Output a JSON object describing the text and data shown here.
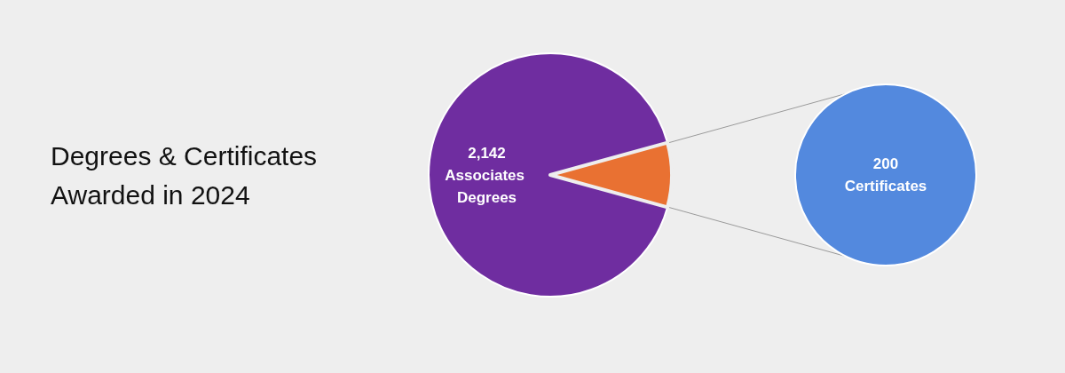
{
  "chart_data": [
    {
      "type": "pie",
      "title": "Degrees & Certificates Awarded in 2024",
      "categories": [
        "Associates Degrees",
        null
      ],
      "values": [
        2142,
        200
      ],
      "colors": [
        "#6f2da0",
        "#e97132"
      ],
      "value_labels": [
        "2,142",
        null
      ]
    },
    {
      "type": "pie",
      "categories": [
        "Certificates"
      ],
      "values": [
        200
      ],
      "colors": [
        "#5389de"
      ],
      "data_labels": true
    }
  ]
}
